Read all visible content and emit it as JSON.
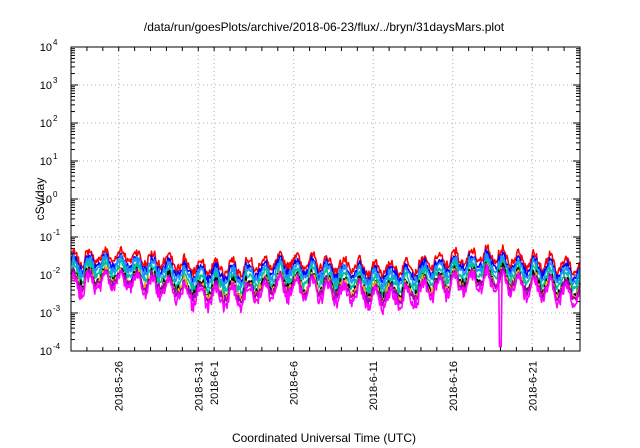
{
  "chart_data": {
    "type": "line",
    "title": "/data/run/goesPlots/archive/2018-06-23/flux/../bryn/31daysMars.plot",
    "xlabel": "Coordinated Universal Time (UTC)",
    "ylabel": "cSv/day",
    "yscale": "log",
    "ylim": [
      0.0001,
      10000
    ],
    "yticks": [
      {
        "base": "10",
        "exp": "-4"
      },
      {
        "base": "10",
        "exp": "-3"
      },
      {
        "base": "10",
        "exp": "-2"
      },
      {
        "base": "10",
        "exp": "-1"
      },
      {
        "base": "10",
        "exp": "0"
      },
      {
        "base": "10",
        "exp": "1"
      },
      {
        "base": "10",
        "exp": "2"
      },
      {
        "base": "10",
        "exp": "3"
      },
      {
        "base": "10",
        "exp": "4"
      }
    ],
    "xlim": [
      "2018-05-23",
      "2018-06-24"
    ],
    "xticks": [
      "2018-5-26",
      "2018-5-31",
      "2018-6-1",
      "2018-6-6",
      "2018-6-11",
      "2018-6-16",
      "2018-6-21"
    ],
    "grid": true,
    "legend": "none",
    "series": [
      {
        "color": "#ff0000",
        "level": 0.021,
        "amp": 0.22
      },
      {
        "color": "#0000ff",
        "level": 0.015,
        "amp": 0.22
      },
      {
        "color": "#1e90ff",
        "level": 0.012,
        "amp": 0.23
      },
      {
        "color": "#00c0a0",
        "level": 0.0085,
        "amp": 0.24
      },
      {
        "color": "#000000",
        "level": 0.0058,
        "amp": 0.25
      },
      {
        "color": "#ffb000",
        "level": 0.0052,
        "amp": 0.25
      },
      {
        "color": "#a000c0",
        "level": 0.0048,
        "amp": 0.26
      },
      {
        "color": "#ff00ff",
        "level": 0.0038,
        "amp": 0.3,
        "min_date": "2018-06-19",
        "min_value": 0.00013
      }
    ]
  }
}
